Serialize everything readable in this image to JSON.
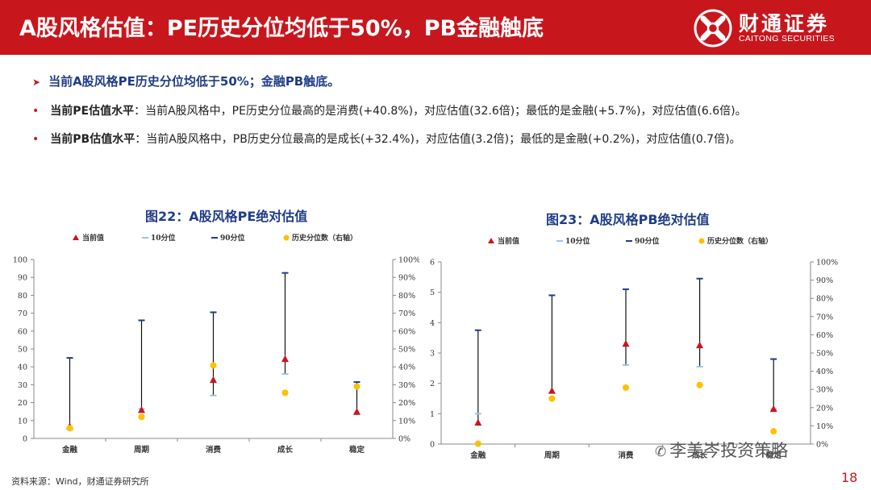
{
  "header": {
    "title": "A股风格估值：PE历史分位均低于50%，PB金融触底",
    "logo_cn": "财通证券",
    "logo_en": "CAITONG SECURITIES",
    "logo_icon": "caitong-logo-icon",
    "accent_color": "#c8161d"
  },
  "summary": "当前A股风格PE历史分位均低于50%；金融PB触底。",
  "bullets": [
    {
      "label": "当前PE估值水平",
      "text": "：当前A股风格中，PE历史分位最高的是消费(+40.8%)，对应估值(32.6倍)；最低的是金融(+5.7%)，对应估值(6.6倍)。"
    },
    {
      "label": "当前PB估值水平",
      "text": "：当前A股风格中，PB历史分位最高的是成长(+32.4%)，对应估值(3.2倍)；最低的是金融(+0.2%)，对应估值(0.7倍)。"
    }
  ],
  "footer": {
    "source": "资料来源：Wind，财通证券研究所",
    "page": "18",
    "watermark": "李美岑投资策略",
    "watermark_icon": "wechat-icon"
  },
  "chart_data": [
    {
      "type": "scatter",
      "title": "图22：A股风格PE绝对估值",
      "categories": [
        "金融",
        "周期",
        "消费",
        "成长",
        "稳定"
      ],
      "legend": [
        "当前值",
        "10分位",
        "90分位",
        "历史分位数（右轴）"
      ],
      "legend_position": "top",
      "ylim": [
        0,
        100
      ],
      "yticks": [
        0,
        10,
        20,
        30,
        40,
        50,
        60,
        70,
        80,
        90,
        100
      ],
      "y2lim": [
        0,
        100
      ],
      "y2ticks": [
        "0%",
        "10%",
        "20%",
        "30%",
        "40%",
        "50%",
        "60%",
        "70%",
        "80%",
        "90%",
        "100%"
      ],
      "series": [
        {
          "name": "当前值",
          "values": [
            6.6,
            15.8,
            32.6,
            44.3,
            14.8
          ],
          "color": "#c8161d",
          "marker": "triangle"
        },
        {
          "name": "10分位",
          "values": [
            6.2,
            16.5,
            24.0,
            36.0,
            13.5
          ],
          "color": "#9dc3e6",
          "marker": "dash"
        },
        {
          "name": "90分位",
          "values": [
            45.0,
            66.0,
            70.5,
            92.5,
            31.5
          ],
          "color": "#1f3c88",
          "marker": "dash"
        },
        {
          "name": "历史分位数（右轴）",
          "values": [
            5.7,
            12.0,
            40.8,
            25.5,
            29.0
          ],
          "color": "#ffc000",
          "marker": "circle",
          "axis": "right"
        }
      ],
      "grid": false
    },
    {
      "type": "scatter",
      "title": "图23：A股风格PB绝对估值",
      "categories": [
        "金融",
        "周期",
        "消费",
        "成长",
        "稳定"
      ],
      "legend": [
        "当前值",
        "10分位",
        "90分位",
        "历史分位数（右轴）"
      ],
      "legend_position": "top",
      "ylim": [
        0,
        6
      ],
      "yticks": [
        0,
        1,
        2,
        3,
        4,
        5,
        6
      ],
      "y2lim": [
        0,
        100
      ],
      "y2ticks": [
        "0%",
        "10%",
        "20%",
        "30%",
        "40%",
        "50%",
        "60%",
        "70%",
        "80%",
        "90%",
        "100%"
      ],
      "series": [
        {
          "name": "当前值",
          "values": [
            0.7,
            1.75,
            3.3,
            3.25,
            1.15
          ],
          "color": "#c8161d",
          "marker": "triangle"
        },
        {
          "name": "10分位",
          "values": [
            1.0,
            1.7,
            2.6,
            2.55,
            1.15
          ],
          "color": "#9dc3e6",
          "marker": "dash"
        },
        {
          "name": "90分位",
          "values": [
            3.75,
            4.9,
            5.1,
            5.45,
            2.8
          ],
          "color": "#1f3c88",
          "marker": "dash"
        },
        {
          "name": "历史分位数（右轴）",
          "values": [
            0.2,
            25.0,
            31.0,
            32.4,
            7.0
          ],
          "color": "#ffc000",
          "marker": "circle",
          "axis": "right"
        }
      ],
      "grid": false
    }
  ]
}
